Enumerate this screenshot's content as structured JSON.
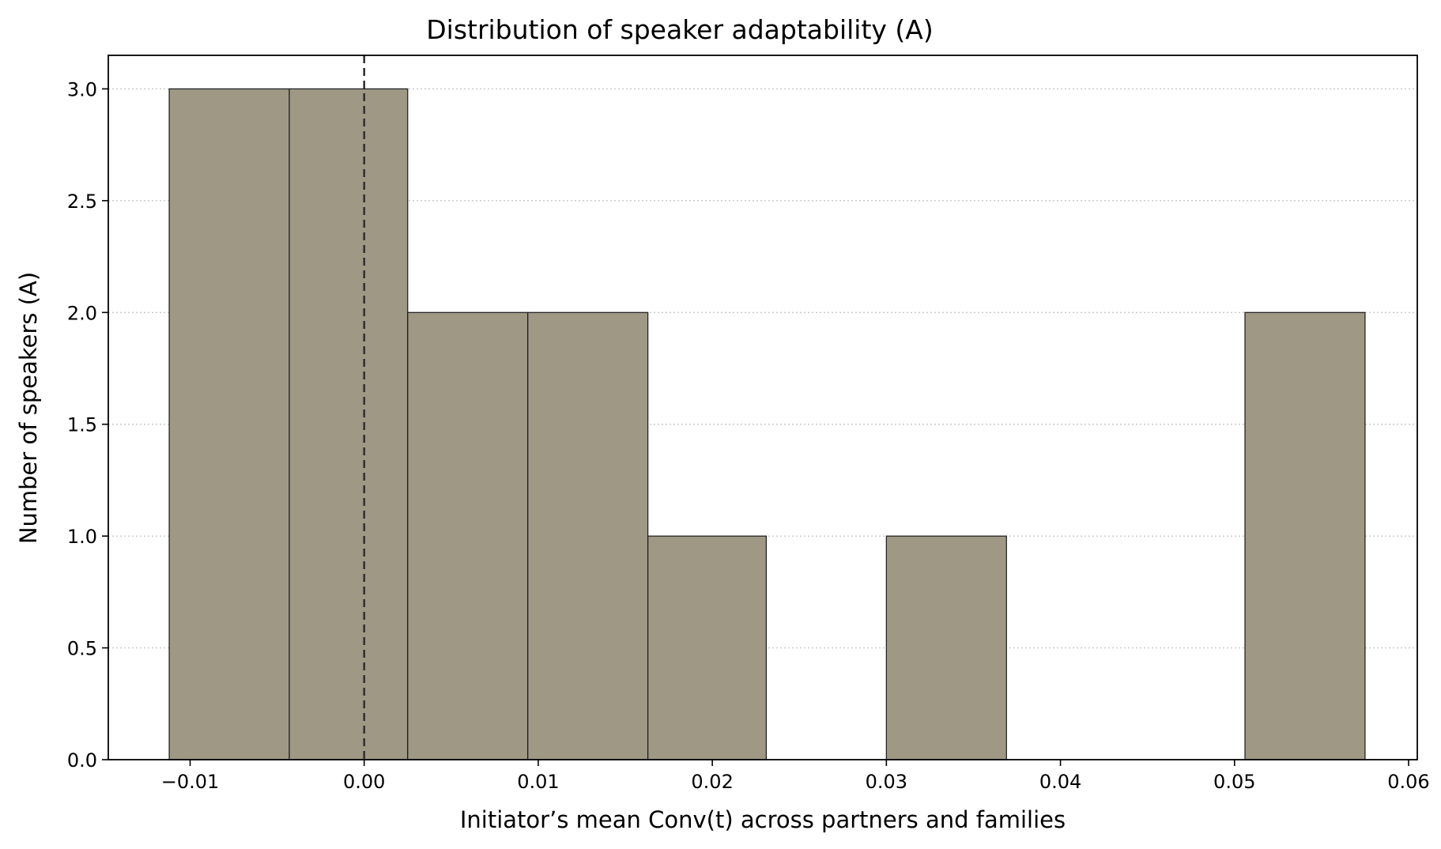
{
  "chart_data": {
    "type": "bar",
    "title": "Distribution of speaker adaptability (A)",
    "xlabel": "Initiator’s mean Conv(t) across partners and families",
    "ylabel": "Number of speakers (A)",
    "xlim": [
      -0.0147,
      0.0605
    ],
    "ylim": [
      0,
      3.15
    ],
    "xticks": [
      -0.01,
      0.0,
      0.01,
      0.02,
      0.03,
      0.04,
      0.05,
      0.06
    ],
    "xtick_labels": [
      "−0.01",
      "0.00",
      "0.01",
      "0.02",
      "0.03",
      "0.04",
      "0.05",
      "0.06"
    ],
    "yticks": [
      0.0,
      0.5,
      1.0,
      1.5,
      2.0,
      2.5,
      3.0
    ],
    "ytick_labels": [
      "0.0",
      "0.5",
      "1.0",
      "1.5",
      "2.0",
      "2.5",
      "3.0"
    ],
    "bins": [
      {
        "x0": -0.0112,
        "x1": -0.0043,
        "count": 3
      },
      {
        "x0": -0.0043,
        "x1": 0.0025,
        "count": 3
      },
      {
        "x0": 0.0025,
        "x1": 0.0094,
        "count": 2
      },
      {
        "x0": 0.0094,
        "x1": 0.0163,
        "count": 2
      },
      {
        "x0": 0.0163,
        "x1": 0.0231,
        "count": 1
      },
      {
        "x0": 0.0231,
        "x1": 0.03,
        "count": 0
      },
      {
        "x0": 0.03,
        "x1": 0.0369,
        "count": 1
      },
      {
        "x0": 0.0369,
        "x1": 0.0437,
        "count": 0
      },
      {
        "x0": 0.0437,
        "x1": 0.0506,
        "count": 0
      },
      {
        "x0": 0.0506,
        "x1": 0.0575,
        "count": 2
      }
    ],
    "reference_line": {
      "x": 0.0,
      "style": "dashed",
      "color": "#333333"
    },
    "grid": {
      "axis": "y",
      "style": "dotted",
      "color": "#c8c8c8"
    },
    "colors": {
      "bar_fill": "#9e9885",
      "bar_edge": "#1a1a1a"
    }
  }
}
